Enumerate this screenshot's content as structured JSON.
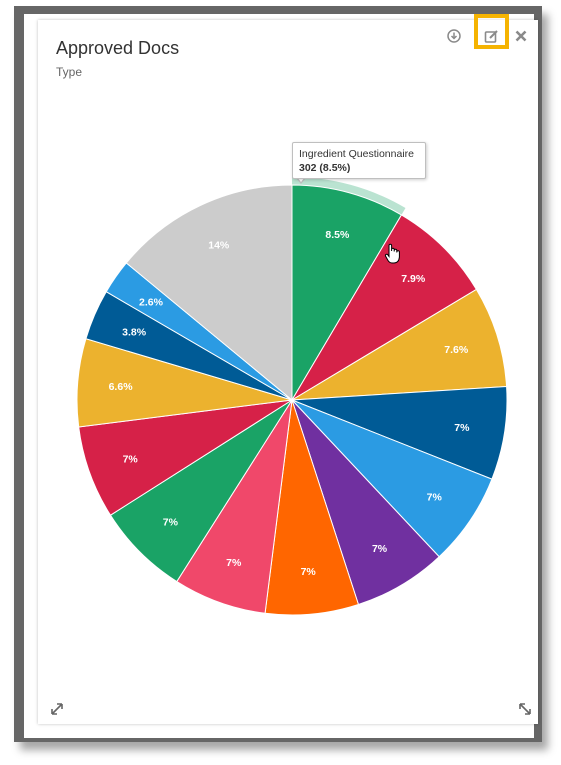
{
  "header": {
    "title": "Approved Docs",
    "subtitle": "Type"
  },
  "toolbar": {
    "download_icon": "download-icon",
    "edit_icon": "edit-icon",
    "close_icon": "close-icon",
    "highlight_color": "#f5b301"
  },
  "tooltip": {
    "name": "Ingredient Questionnaire",
    "value": "302 (8.5%)"
  },
  "chart_data": {
    "type": "pie",
    "title": "Approved Docs",
    "subtitle": "Type",
    "highlighted_slice": 0,
    "slices": [
      {
        "value": 8.5,
        "label": "8.5%",
        "color": "#1aa366",
        "name": "Ingredient Questionnaire",
        "count": 302
      },
      {
        "value": 7.9,
        "label": "7.9%",
        "color": "#d62148"
      },
      {
        "value": 7.6,
        "label": "7.6%",
        "color": "#ecb22e"
      },
      {
        "value": 7,
        "label": "7%",
        "color": "#005b96"
      },
      {
        "value": 7,
        "label": "7%",
        "color": "#2b9be3"
      },
      {
        "value": 7,
        "label": "7%",
        "color": "#7030a0"
      },
      {
        "value": 7,
        "label": "7%",
        "color": "#ff6600"
      },
      {
        "value": 7,
        "label": "7%",
        "color": "#f0486a"
      },
      {
        "value": 7,
        "label": "7%",
        "color": "#1aa366"
      },
      {
        "value": 7,
        "label": "7%",
        "color": "#d62148"
      },
      {
        "value": 6.6,
        "label": "6.6%",
        "color": "#ecb22e"
      },
      {
        "value": 3.8,
        "label": "3.8%",
        "color": "#005b96"
      },
      {
        "value": 2.6,
        "label": "2.6%",
        "color": "#2b9be3"
      },
      {
        "value": 14,
        "label": "14%",
        "color": "#cccccc"
      }
    ]
  }
}
